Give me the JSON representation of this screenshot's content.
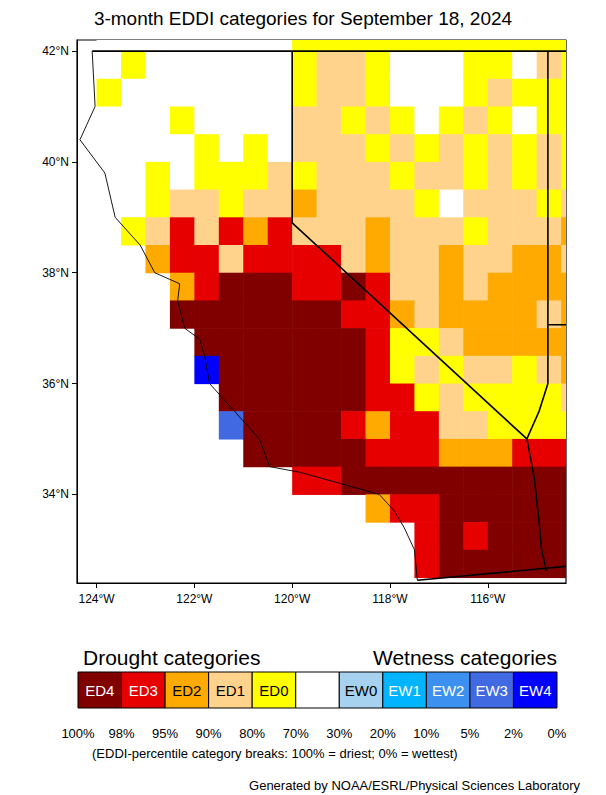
{
  "chart_data": {
    "type": "map",
    "title": "3-month EDDI categories for September 18, 2024",
    "xlim": [
      -124.4,
      -114.4
    ],
    "ylim": [
      32.4,
      42.2
    ],
    "xticks": [
      {
        "value": -124,
        "label": "124°W"
      },
      {
        "value": -122,
        "label": "122°W"
      },
      {
        "value": -120,
        "label": "120°W"
      },
      {
        "value": -118,
        "label": "118°W"
      },
      {
        "value": -116,
        "label": "116°W"
      }
    ],
    "yticks": [
      {
        "value": 34,
        "label": "34°N"
      },
      {
        "value": 36,
        "label": "36°N"
      },
      {
        "value": 38,
        "label": "38°N"
      },
      {
        "value": 40,
        "label": "40°N"
      },
      {
        "value": 42,
        "label": "42°N"
      }
    ],
    "grid": false,
    "legend_titles": [
      "Drought categories",
      "Wetness categories"
    ],
    "color_categories": [
      {
        "label": "ED4",
        "color": "#800000"
      },
      {
        "label": "ED3",
        "color": "#e60000"
      },
      {
        "label": "ED2",
        "color": "#ffaa00"
      },
      {
        "label": "ED1",
        "color": "#ffd38c"
      },
      {
        "label": "ED0",
        "color": "#ffff00"
      },
      {
        "label": null,
        "color": "#ffffff"
      },
      {
        "label": "EW0",
        "color": "#a6d2f0"
      },
      {
        "label": "EW1",
        "color": "#00b4ff"
      },
      {
        "label": "EW2",
        "color": "#3c91f0"
      },
      {
        "label": "EW3",
        "color": "#4169e1"
      },
      {
        "label": "EW4",
        "color": "#0000ff"
      }
    ],
    "breaks": [
      "100%",
      "98%",
      "95%",
      "90%",
      "80%",
      "70%",
      "30%",
      "20%",
      "10%",
      "5%",
      "2%",
      "0%"
    ],
    "note": "(EDDI-percentile category breaks: 100% = driest; 0% = wettest)",
    "credit": "Generated by NOAA/ESRL/Physical Sciences Laboratory",
    "lon_centers": [
      -124.25,
      -123.75,
      -123.25,
      -122.75,
      -122.25,
      -121.75,
      -121.25,
      -120.75,
      -120.25,
      -119.75,
      -119.25,
      -118.75,
      -118.25,
      -117.75,
      -117.25,
      -116.75,
      -116.25,
      -115.75,
      -115.25,
      -114.75,
      -114.25
    ],
    "lat_centers": [
      42.25,
      41.75,
      41.25,
      40.75,
      40.25,
      39.75,
      39.25,
      38.75,
      38.25,
      37.75,
      37.25,
      36.75,
      36.25,
      35.75,
      35.25,
      34.75,
      34.25,
      33.75,
      33.25,
      32.75
    ],
    "cells": [
      [
        null,
        5,
        5,
        5,
        5,
        5,
        5,
        5,
        5,
        4,
        4,
        4,
        4,
        4,
        4,
        4,
        4,
        4,
        4,
        4,
        4
      ],
      [
        null,
        5,
        4,
        5,
        5,
        5,
        5,
        5,
        5,
        4,
        3,
        3,
        4,
        5,
        5,
        5,
        4,
        4,
        5,
        3,
        4
      ],
      [
        null,
        4,
        5,
        5,
        5,
        5,
        5,
        5,
        5,
        4,
        3,
        3,
        4,
        5,
        5,
        5,
        4,
        3,
        4,
        4,
        4
      ],
      [
        null,
        5,
        5,
        5,
        4,
        5,
        5,
        5,
        5,
        3,
        3,
        4,
        3,
        4,
        5,
        4,
        3,
        4,
        5,
        4,
        4
      ],
      [
        null,
        5,
        5,
        5,
        5,
        4,
        5,
        4,
        5,
        3,
        3,
        3,
        4,
        3,
        4,
        3,
        4,
        3,
        4,
        3,
        4
      ],
      [
        null,
        5,
        5,
        4,
        5,
        4,
        4,
        4,
        3,
        4,
        3,
        3,
        3,
        4,
        3,
        3,
        4,
        3,
        4,
        3,
        4
      ],
      [
        null,
        5,
        5,
        4,
        3,
        3,
        4,
        3,
        3,
        2,
        3,
        3,
        3,
        3,
        4,
        5,
        3,
        3,
        3,
        4,
        3
      ],
      [
        null,
        null,
        4,
        3,
        1,
        3,
        1,
        2,
        1,
        3,
        3,
        3,
        2,
        3,
        3,
        3,
        4,
        3,
        3,
        3,
        2
      ],
      [
        null,
        null,
        null,
        2,
        1,
        1,
        3,
        1,
        1,
        1,
        1,
        3,
        2,
        3,
        3,
        2,
        3,
        3,
        2,
        2,
        3
      ],
      [
        null,
        null,
        null,
        null,
        2,
        1,
        0,
        0,
        0,
        1,
        1,
        0,
        1,
        3,
        3,
        2,
        3,
        2,
        2,
        2,
        2
      ],
      [
        null,
        null,
        null,
        null,
        0,
        0,
        0,
        0,
        0,
        0,
        0,
        1,
        1,
        2,
        3,
        2,
        2,
        2,
        2,
        3,
        2
      ],
      [
        null,
        null,
        null,
        null,
        null,
        0,
        0,
        0,
        0,
        0,
        0,
        0,
        1,
        4,
        4,
        3,
        2,
        2,
        2,
        2,
        2
      ],
      [
        null,
        null,
        null,
        null,
        null,
        10,
        0,
        0,
        0,
        0,
        0,
        0,
        1,
        4,
        3,
        4,
        3,
        3,
        4,
        3,
        2
      ],
      [
        null,
        null,
        null,
        null,
        null,
        null,
        0,
        0,
        0,
        0,
        0,
        0,
        1,
        1,
        4,
        3,
        4,
        4,
        4,
        4,
        3
      ],
      [
        null,
        null,
        null,
        null,
        null,
        null,
        9,
        0,
        0,
        0,
        0,
        1,
        2,
        1,
        1,
        3,
        3,
        4,
        4,
        4,
        4
      ],
      [
        null,
        null,
        null,
        null,
        null,
        null,
        null,
        0,
        0,
        0,
        0,
        0,
        1,
        1,
        1,
        2,
        2,
        2,
        1,
        1,
        1
      ],
      [
        null,
        null,
        null,
        null,
        null,
        null,
        null,
        null,
        null,
        1,
        1,
        0,
        0,
        0,
        0,
        0,
        0,
        0,
        0,
        0,
        0
      ],
      [
        null,
        null,
        null,
        null,
        null,
        null,
        null,
        null,
        null,
        null,
        null,
        null,
        2,
        1,
        1,
        0,
        0,
        0,
        0,
        0,
        0
      ],
      [
        null,
        null,
        null,
        null,
        null,
        null,
        null,
        null,
        null,
        null,
        null,
        null,
        null,
        null,
        1,
        0,
        1,
        0,
        0,
        0,
        0
      ],
      [
        null,
        null,
        null,
        null,
        null,
        null,
        null,
        null,
        null,
        null,
        null,
        null,
        null,
        null,
        1,
        0,
        0,
        0,
        0,
        0,
        0
      ]
    ],
    "boundaries": {
      "coast": [
        [
          -124.09,
          42.0
        ],
        [
          -124.03,
          41.0
        ],
        [
          -124.34,
          40.4
        ],
        [
          -123.83,
          39.8
        ],
        [
          -123.62,
          39.0
        ],
        [
          -123.11,
          38.5
        ],
        [
          -122.81,
          38.0
        ],
        [
          -122.3,
          37.8
        ],
        [
          -122.34,
          37.5
        ],
        [
          -122.2,
          37.0
        ],
        [
          -121.89,
          36.8
        ],
        [
          -121.79,
          36.5
        ],
        [
          -121.69,
          36.0
        ],
        [
          -121.18,
          35.5
        ],
        [
          -120.67,
          35.0
        ],
        [
          -120.46,
          34.5
        ],
        [
          -119.85,
          34.4
        ],
        [
          -119.03,
          34.2
        ],
        [
          -118.22,
          34.0
        ],
        [
          -117.91,
          33.7
        ],
        [
          -117.71,
          33.4
        ],
        [
          -117.5,
          33.0
        ],
        [
          -117.44,
          32.45
        ]
      ],
      "states": [
        [
          [
            -124.09,
            42.0
          ],
          [
            -114.4,
            42.0
          ]
        ],
        [
          [
            -120.0,
            42.0
          ],
          [
            -120.0,
            38.9
          ],
          [
            -115.2,
            35.0
          ]
        ],
        [
          [
            -114.77,
            42.0
          ],
          [
            -114.77,
            37.06
          ],
          [
            -114.4,
            37.06
          ]
        ],
        [
          [
            -114.77,
            37.06
          ],
          [
            -114.77,
            36.0
          ],
          [
            -114.95,
            35.5
          ],
          [
            -115.2,
            35.0
          ]
        ],
        [
          [
            -115.2,
            35.0
          ],
          [
            -115.05,
            34.3
          ],
          [
            -114.95,
            33.5
          ],
          [
            -114.9,
            33.0
          ],
          [
            -114.8,
            32.62
          ]
        ],
        [
          [
            -117.44,
            32.45
          ],
          [
            -114.4,
            32.7
          ]
        ]
      ]
    }
  }
}
